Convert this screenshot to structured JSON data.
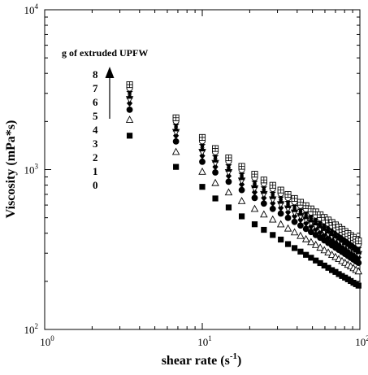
{
  "chart_data": {
    "type": "scatter",
    "xlabel": "shear rate (s",
    "xlabel_sup": "-1",
    "xlabel_end": ")",
    "ylabel": "Viscosity (mPa*s)",
    "xscale": "log",
    "yscale": "log",
    "xlim": [
      1,
      100
    ],
    "ylim": [
      100,
      10000
    ],
    "x_ticks": [
      {
        "base": "10",
        "exp": "0"
      },
      {
        "base": "10",
        "exp": "1"
      },
      {
        "base": "10",
        "exp": "2"
      }
    ],
    "y_ticks": [
      {
        "base": "10",
        "exp": "2"
      },
      {
        "base": "10",
        "exp": "3"
      },
      {
        "base": "10",
        "exp": "4"
      }
    ],
    "legend": {
      "title": "g of extruded UPFW",
      "labels": [
        "8",
        "7",
        "6",
        "5",
        "4",
        "3",
        "2",
        "1",
        "0"
      ]
    },
    "x": [
      3.46,
      6.81,
      10.0,
      12.1,
      14.7,
      17.8,
      21.5,
      24.6,
      28.0,
      31.5,
      35.0,
      38.5,
      42.0,
      45.5,
      49.0,
      52.5,
      56.0,
      59.5,
      63.0,
      66.5,
      70.0,
      73.5,
      77.0,
      80.5,
      84.0,
      87.5,
      91.0,
      94.5,
      98.0
    ],
    "series": [
      {
        "name": "0",
        "marker": "square-filled",
        "values": [
          1630,
          1040,
          780,
          660,
          580,
          510,
          455,
          420,
          390,
          365,
          342,
          323,
          307,
          293,
          281,
          270,
          260,
          251,
          243,
          235,
          229,
          222,
          216,
          211,
          206,
          201,
          196,
          192,
          188
        ]
      },
      {
        "name": "1",
        "marker": "triangle-open",
        "values": [
          2050,
          1290,
          970,
          825,
          720,
          636,
          568,
          524,
          487,
          455,
          428,
          405,
          385,
          367,
          352,
          338,
          325,
          313,
          303,
          293,
          284,
          276,
          268,
          261,
          254,
          248,
          242,
          236,
          231
        ]
      },
      {
        "name": "2",
        "marker": "circle-filled",
        "values": [
          2370,
          1500,
          1120,
          960,
          840,
          745,
          665,
          613,
          568,
          531,
          499,
          471,
          447,
          426,
          407,
          390,
          375,
          361,
          348,
          336,
          325,
          315,
          306,
          297,
          289,
          281,
          274,
          267,
          261
        ]
      },
      {
        "name": "3",
        "marker": "diamond-filled",
        "values": [
          2600,
          1630,
          1220,
          1040,
          912,
          808,
          722,
          665,
          616,
          576,
          541,
          511,
          485,
          462,
          441,
          423,
          406,
          391,
          377,
          364,
          352,
          341,
          331,
          321,
          312,
          304,
          296,
          289,
          282
        ]
      },
      {
        "name": "4",
        "marker": "triangle-down-open",
        "values": [
          2760,
          1720,
          1290,
          1100,
          964,
          854,
          763,
          703,
          651,
          608,
          571,
          539,
          511,
          487,
          465,
          446,
          428,
          412,
          397,
          383,
          371,
          359,
          348,
          338,
          328,
          319,
          311,
          303,
          296
        ]
      },
      {
        "name": "5",
        "marker": "triangle-filled",
        "values": [
          2880,
          1800,
          1350,
          1150,
          1008,
          893,
          797,
          734,
          680,
          635,
          596,
          563,
          534,
          508,
          485,
          465,
          446,
          429,
          414,
          399,
          386,
          374,
          362,
          351,
          341,
          332,
          323,
          315,
          307
        ]
      },
      {
        "name": "6",
        "marker": "star-filled",
        "values": [
          3050,
          1900,
          1420,
          1210,
          1060,
          938,
          837,
          771,
          714,
          667,
          626,
          591,
          560,
          533,
          509,
          487,
          468,
          450,
          434,
          419,
          405,
          392,
          380,
          368,
          358,
          348,
          339,
          330,
          322
        ]
      },
      {
        "name": "7",
        "marker": "circle-open",
        "values": [
          3230,
          2010,
          1510,
          1290,
          1128,
          998,
          891,
          820,
          760,
          709,
          666,
          628,
          596,
          567,
          541,
          518,
          497,
          478,
          461,
          445,
          430,
          416,
          403,
          391,
          380,
          369,
          359,
          350,
          341
        ]
      },
      {
        "name": "8",
        "marker": "square-open-cross",
        "values": [
          3400,
          2110,
          1590,
          1355,
          1185,
          1048,
          936,
          861,
          798,
          745,
          699,
          660,
          625,
          595,
          568,
          544,
          522,
          502,
          484,
          467,
          451,
          437,
          423,
          410,
          398,
          387,
          377,
          367,
          358
        ]
      }
    ]
  }
}
